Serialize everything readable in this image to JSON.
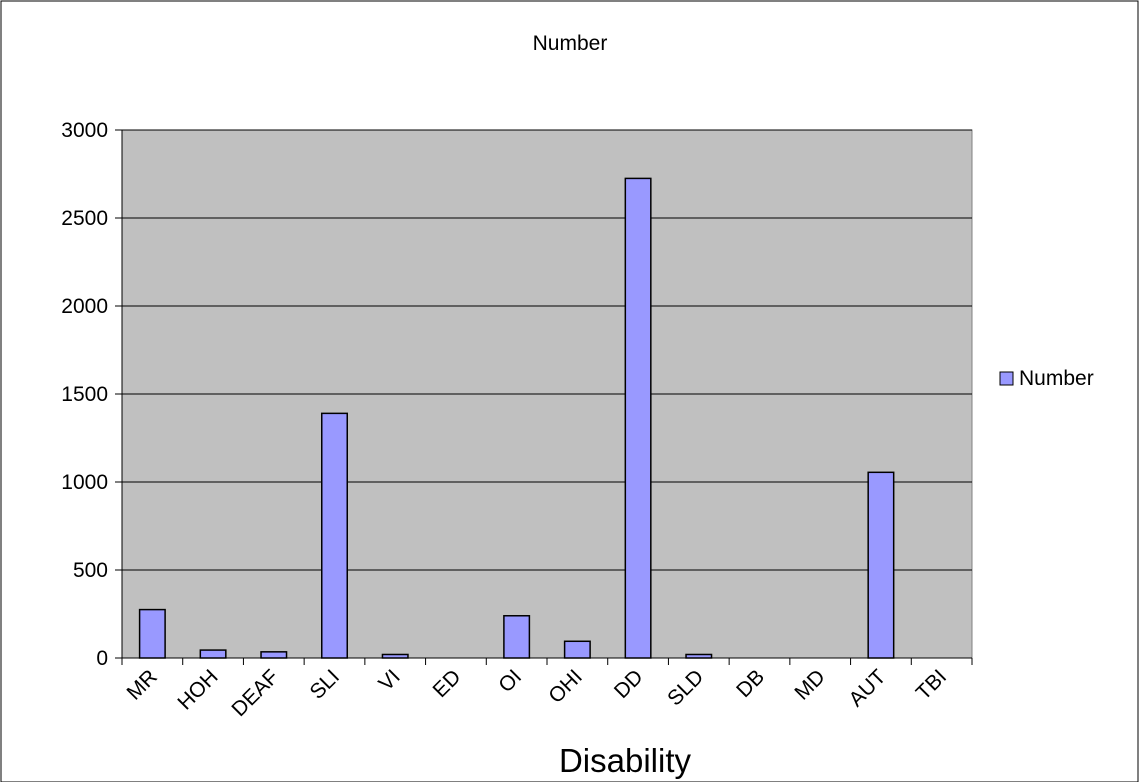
{
  "chart_data": {
    "type": "bar",
    "title": "Number",
    "xlabel": "Disability",
    "ylabel": "",
    "categories": [
      "MR",
      "HOH",
      "DEAF",
      "SLI",
      "VI",
      "ED",
      "OI",
      "OHI",
      "DD",
      "SLD",
      "DB",
      "MD",
      "AUT",
      "TBI"
    ],
    "series": [
      {
        "name": "Number",
        "values": [
          275,
          45,
          35,
          1390,
          20,
          0,
          240,
          95,
          2725,
          20,
          0,
          0,
          1055,
          0
        ],
        "color": "#9999ff"
      }
    ],
    "ylim": [
      0,
      3000
    ],
    "yticks": [
      0,
      500,
      1000,
      1500,
      2000,
      2500,
      3000
    ],
    "grid": true,
    "legend_position": "right",
    "plot_background": "#c0c0c0"
  }
}
